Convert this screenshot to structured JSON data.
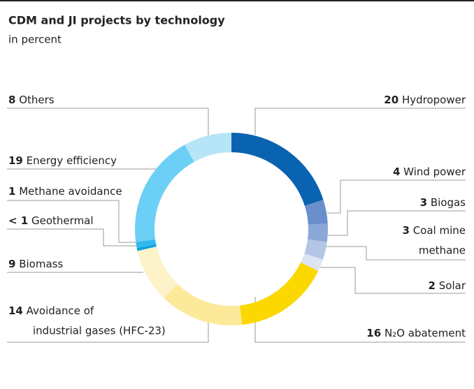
{
  "chart_data": {
    "type": "donut",
    "title": "CDM and JI projects by technology",
    "subtitle": "in percent",
    "categories": [
      "Hydropower",
      "Wind power",
      "Biogas",
      [
        "Coal mine",
        "methane"
      ],
      "Solar",
      "N₂O abatement",
      [
        "Avoidance of",
        "industrial gases (HFC-23)"
      ],
      "Biomass",
      "Geothermal",
      "Methane avoidance",
      "Energy efficiency",
      "Others"
    ],
    "values": [
      20,
      4,
      3,
      3,
      2,
      16,
      14,
      9,
      0.5,
      1,
      19,
      8
    ],
    "value_labels": [
      "20",
      "4",
      "3",
      "3",
      "2",
      "16",
      "14",
      "9",
      "< 1",
      "1",
      "19",
      "8"
    ],
    "colors": [
      "#0a63b0",
      "#6a8fcc",
      "#8aa7d8",
      "#b3c6e6",
      "#dde4f4",
      "#fbd800",
      "#fde99a",
      "#fdf2c8",
      "#0da3e0",
      "#33b8ee",
      "#6ccff6",
      "#b7e5f8"
    ]
  }
}
